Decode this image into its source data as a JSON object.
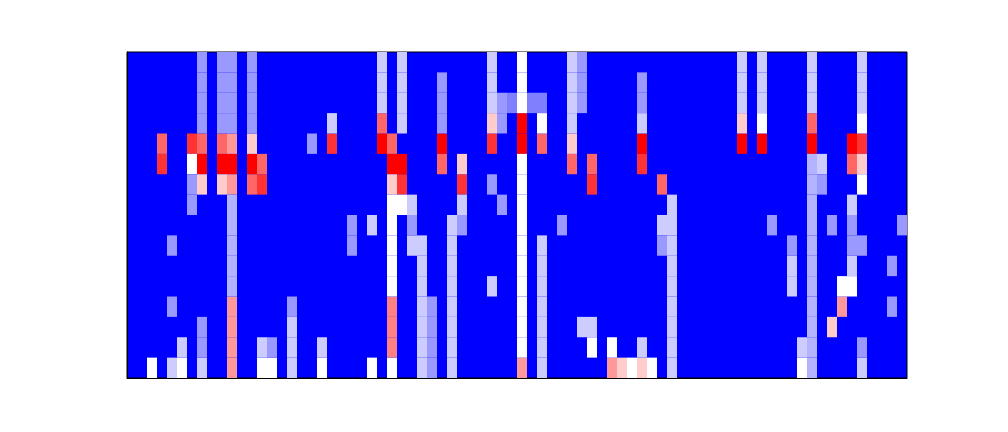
{
  "chart_data": {
    "type": "heatmap",
    "tick_labels": false,
    "grid": false,
    "xlim": [
      0,
      78
    ],
    "ylim": [
      0,
      16
    ],
    "colors": [
      "#0000ff",
      "#ffffff",
      "#ff0000"
    ],
    "color_range": [
      0,
      1
    ],
    "cells": [
      [
        3,
        10,
        0.9
      ],
      [
        3,
        11,
        0.8
      ],
      [
        6,
        11,
        0.9
      ],
      [
        6,
        10,
        0.5
      ],
      [
        6,
        9,
        0.3
      ],
      [
        7,
        10,
        1
      ],
      [
        7,
        11,
        0.8
      ],
      [
        7,
        9,
        0.6
      ],
      [
        7,
        12,
        0.3
      ],
      [
        7,
        13,
        0.3
      ],
      [
        7,
        14,
        0.3
      ],
      [
        7,
        15,
        0.3
      ],
      [
        9,
        10,
        1
      ],
      [
        9,
        11,
        0.8
      ],
      [
        9,
        9,
        0.6
      ],
      [
        9,
        12,
        0.3
      ],
      [
        9,
        13,
        0.3
      ],
      [
        9,
        14,
        0.3
      ],
      [
        9,
        15,
        0.3
      ],
      [
        10,
        10,
        1
      ],
      [
        10,
        11,
        0.7
      ],
      [
        10,
        9,
        0.7
      ],
      [
        10,
        12,
        0.3
      ],
      [
        10,
        13,
        0.3
      ],
      [
        10,
        14,
        0.3
      ],
      [
        10,
        15,
        0.3
      ],
      [
        10,
        0,
        0.7
      ],
      [
        10,
        1,
        0.7
      ],
      [
        10,
        2,
        0.7
      ],
      [
        10,
        3,
        0.7
      ],
      [
        10,
        4,
        0.35
      ],
      [
        10,
        5,
        0.35
      ],
      [
        10,
        6,
        0.35
      ],
      [
        10,
        7,
        0.35
      ],
      [
        10,
        8,
        0.35
      ],
      [
        12,
        10,
        1
      ],
      [
        12,
        9,
        0.8
      ],
      [
        12,
        11,
        0.6
      ],
      [
        12,
        12,
        0.3
      ],
      [
        12,
        13,
        0.3
      ],
      [
        12,
        14,
        0.3
      ],
      [
        12,
        15,
        0.3
      ],
      [
        13,
        9,
        0.9
      ],
      [
        13,
        10,
        0.8
      ],
      [
        2,
        0,
        0.5
      ],
      [
        4,
        0,
        0.4
      ],
      [
        5,
        0,
        0.5
      ],
      [
        5,
        1,
        0.4
      ],
      [
        7,
        0,
        0.4
      ],
      [
        7,
        1,
        0.3
      ],
      [
        7,
        2,
        0.3
      ],
      [
        13,
        0,
        0.5
      ],
      [
        13,
        1,
        0.4
      ],
      [
        14,
        0,
        0.5
      ],
      [
        14,
        1,
        0.3
      ],
      [
        16,
        0,
        0.4
      ],
      [
        16,
        1,
        0.4
      ],
      [
        16,
        2,
        0.4
      ],
      [
        16,
        3,
        0.3
      ],
      [
        19,
        0,
        0.5
      ],
      [
        19,
        1,
        0.4
      ],
      [
        4,
        6,
        0.3
      ],
      [
        4,
        3,
        0.3
      ],
      [
        6,
        8,
        0.3
      ],
      [
        18,
        11,
        0.3
      ],
      [
        20,
        11,
        0.9
      ],
      [
        20,
        12,
        0.4
      ],
      [
        22,
        7,
        0.3
      ],
      [
        22,
        6,
        0.3
      ],
      [
        24,
        7,
        0.4
      ],
      [
        24,
        0,
        0.5
      ],
      [
        25,
        11,
        1
      ],
      [
        25,
        12,
        0.8
      ],
      [
        25,
        13,
        0.4
      ],
      [
        25,
        14,
        0.4
      ],
      [
        25,
        15,
        0.4
      ],
      [
        26,
        10,
        1
      ],
      [
        26,
        11,
        0.8
      ],
      [
        26,
        9,
        0.6
      ],
      [
        26,
        0,
        0.5
      ],
      [
        26,
        1,
        0.75
      ],
      [
        26,
        2,
        0.75
      ],
      [
        26,
        3,
        0.75
      ],
      [
        26,
        4,
        0.5
      ],
      [
        26,
        5,
        0.5
      ],
      [
        26,
        6,
        0.5
      ],
      [
        26,
        7,
        0.5
      ],
      [
        26,
        8,
        0.5
      ],
      [
        27,
        9,
        0.9
      ],
      [
        27,
        10,
        1
      ],
      [
        27,
        8,
        0.5
      ],
      [
        27,
        12,
        0.4
      ],
      [
        27,
        13,
        0.4
      ],
      [
        27,
        14,
        0.4
      ],
      [
        27,
        15,
        0.4
      ],
      [
        28,
        8,
        0.4
      ],
      [
        28,
        6,
        0.4
      ],
      [
        28,
        7,
        0.3
      ],
      [
        29,
        0,
        0.4
      ],
      [
        29,
        1,
        0.4
      ],
      [
        29,
        2,
        0.4
      ],
      [
        29,
        3,
        0.4
      ],
      [
        29,
        4,
        0.4
      ],
      [
        29,
        5,
        0.4
      ],
      [
        29,
        6,
        0.4
      ],
      [
        30,
        0,
        0.3
      ],
      [
        30,
        1,
        0.3
      ],
      [
        30,
        2,
        0.3
      ],
      [
        30,
        3,
        0.3
      ],
      [
        31,
        11,
        1
      ],
      [
        31,
        10,
        0.8
      ],
      [
        31,
        12,
        0.3
      ],
      [
        31,
        13,
        0.3
      ],
      [
        31,
        14,
        0.3
      ],
      [
        32,
        0,
        0.4
      ],
      [
        32,
        1,
        0.4
      ],
      [
        32,
        2,
        0.4
      ],
      [
        32,
        3,
        0.4
      ],
      [
        32,
        4,
        0.4
      ],
      [
        32,
        5,
        0.4
      ],
      [
        32,
        6,
        0.4
      ],
      [
        32,
        7,
        0.4
      ],
      [
        33,
        9,
        0.9
      ],
      [
        33,
        10,
        0.6
      ],
      [
        33,
        8,
        0.4
      ],
      [
        33,
        7,
        0.3
      ],
      [
        36,
        4,
        0.4
      ],
      [
        36,
        11,
        0.9
      ],
      [
        36,
        12,
        0.6
      ],
      [
        36,
        13,
        0.4
      ],
      [
        36,
        14,
        0.4
      ],
      [
        36,
        15,
        0.4
      ],
      [
        36,
        9,
        0.3
      ],
      [
        37,
        8,
        0.3
      ],
      [
        37,
        12,
        0.3
      ],
      [
        37,
        13,
        0.3
      ],
      [
        39,
        11,
        1
      ],
      [
        39,
        12,
        1
      ],
      [
        39,
        13,
        0.5
      ],
      [
        39,
        14,
        0.5
      ],
      [
        39,
        15,
        0.5
      ],
      [
        39,
        0,
        0.7
      ],
      [
        39,
        1,
        0.5
      ],
      [
        39,
        2,
        0.5
      ],
      [
        39,
        3,
        0.5
      ],
      [
        39,
        4,
        0.5
      ],
      [
        39,
        5,
        0.5
      ],
      [
        39,
        6,
        0.5
      ],
      [
        39,
        7,
        0.5
      ],
      [
        39,
        8,
        0.5
      ],
      [
        39,
        9,
        0.5
      ],
      [
        39,
        10,
        0.5
      ],
      [
        38,
        13,
        0.25
      ],
      [
        40,
        13,
        0.25
      ],
      [
        41,
        13,
        0.25
      ],
      [
        41,
        11,
        0.8
      ],
      [
        41,
        12,
        0.5
      ],
      [
        41,
        0,
        0.4
      ],
      [
        41,
        1,
        0.4
      ],
      [
        41,
        2,
        0.4
      ],
      [
        41,
        3,
        0.4
      ],
      [
        41,
        4,
        0.4
      ],
      [
        41,
        5,
        0.4
      ],
      [
        41,
        6,
        0.4
      ],
      [
        43,
        7,
        0.3
      ],
      [
        44,
        12,
        0.4
      ],
      [
        44,
        13,
        0.4
      ],
      [
        44,
        14,
        0.4
      ],
      [
        44,
        15,
        0.4
      ],
      [
        44,
        10,
        0.8
      ],
      [
        44,
        11,
        0.6
      ],
      [
        45,
        13,
        0.3
      ],
      [
        45,
        14,
        0.3
      ],
      [
        45,
        15,
        0.3
      ],
      [
        45,
        2,
        0.4
      ],
      [
        46,
        9,
        0.9
      ],
      [
        46,
        10,
        0.8
      ],
      [
        46,
        1,
        0.5
      ],
      [
        46,
        2,
        0.4
      ],
      [
        48,
        0,
        0.7
      ],
      [
        48,
        1,
        0.5
      ],
      [
        49,
        0,
        0.6
      ],
      [
        50,
        0,
        0.5
      ],
      [
        51,
        0,
        0.6
      ],
      [
        51,
        1,
        0.4
      ],
      [
        52,
        0,
        0.5
      ],
      [
        51,
        11,
        1
      ],
      [
        51,
        10,
        0.9
      ],
      [
        51,
        12,
        0.4
      ],
      [
        51,
        13,
        0.3
      ],
      [
        51,
        14,
        0.3
      ],
      [
        53,
        7,
        0.4
      ],
      [
        53,
        6,
        0.3
      ],
      [
        53,
        9,
        0.8
      ],
      [
        54,
        0,
        0.4
      ],
      [
        54,
        1,
        0.4
      ],
      [
        54,
        2,
        0.4
      ],
      [
        54,
        3,
        0.4
      ],
      [
        54,
        4,
        0.4
      ],
      [
        54,
        5,
        0.4
      ],
      [
        54,
        6,
        0.4
      ],
      [
        54,
        7,
        0.4
      ],
      [
        54,
        8,
        0.4
      ],
      [
        61,
        11,
        1
      ],
      [
        61,
        12,
        0.6
      ],
      [
        61,
        13,
        0.4
      ],
      [
        61,
        14,
        0.4
      ],
      [
        61,
        15,
        0.4
      ],
      [
        63,
        11,
        1
      ],
      [
        63,
        12,
        0.5
      ],
      [
        63,
        13,
        0.4
      ],
      [
        63,
        14,
        0.4
      ],
      [
        63,
        15,
        0.4
      ],
      [
        64,
        7,
        0.3
      ],
      [
        66,
        4,
        0.4
      ],
      [
        66,
        5,
        0.4
      ],
      [
        66,
        6,
        0.3
      ],
      [
        67,
        0,
        0.5
      ],
      [
        67,
        1,
        0.4
      ],
      [
        68,
        11,
        1
      ],
      [
        68,
        12,
        0.8
      ],
      [
        68,
        13,
        0.4
      ],
      [
        68,
        14,
        0.4
      ],
      [
        68,
        15,
        0.4
      ],
      [
        68,
        0,
        0.35
      ],
      [
        68,
        1,
        0.35
      ],
      [
        68,
        2,
        0.35
      ],
      [
        68,
        3,
        0.35
      ],
      [
        68,
        4,
        0.35
      ],
      [
        68,
        5,
        0.35
      ],
      [
        68,
        6,
        0.35
      ],
      [
        68,
        7,
        0.35
      ],
      [
        68,
        8,
        0.35
      ],
      [
        68,
        9,
        0.35
      ],
      [
        68,
        10,
        0.35
      ],
      [
        69,
        10,
        0.4
      ],
      [
        69,
        9,
        0.3
      ],
      [
        70,
        2,
        0.6
      ],
      [
        71,
        3,
        0.7
      ],
      [
        71,
        4,
        0.5
      ],
      [
        72,
        4,
        0.5
      ],
      [
        72,
        5,
        0.4
      ],
      [
        72,
        6,
        0.3
      ],
      [
        73,
        6,
        0.3
      ],
      [
        70,
        7,
        0.3
      ],
      [
        72,
        11,
        1
      ],
      [
        72,
        10,
        0.8
      ],
      [
        72,
        8,
        0.4
      ],
      [
        72,
        7,
        0.3
      ],
      [
        73,
        11,
        0.9
      ],
      [
        73,
        10,
        0.6
      ],
      [
        73,
        9,
        0.5
      ],
      [
        73,
        12,
        0.5
      ],
      [
        73,
        13,
        0.4
      ],
      [
        73,
        14,
        0.4
      ],
      [
        73,
        15,
        0.4
      ],
      [
        73,
        0,
        0.4
      ],
      [
        73,
        1,
        0.3
      ],
      [
        77,
        7,
        0.3
      ],
      [
        76,
        5,
        0.3
      ],
      [
        76,
        3,
        0.3
      ]
    ]
  }
}
